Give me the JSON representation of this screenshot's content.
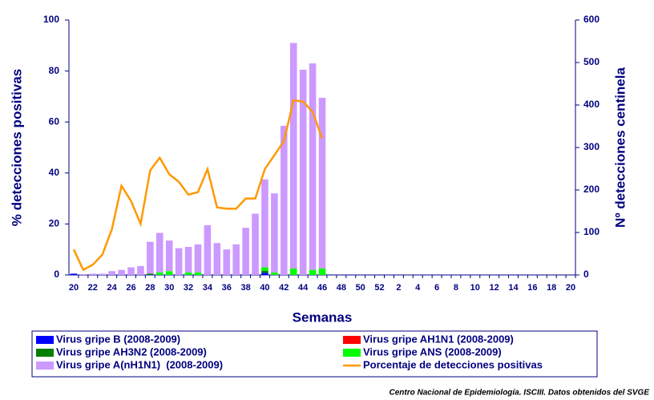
{
  "chart_data": {
    "type": "bar",
    "ylabel": "% detecciones positivas",
    "y2label": "Nº detecciones centinela",
    "xlabel": "Semanas",
    "source": "Centro Nacional de Epidemiología. ISCIII. Datos obtenidos del SVGE",
    "stacked": true,
    "ylim": [
      0,
      100
    ],
    "yticks": [
      0,
      20,
      40,
      60,
      80,
      100
    ],
    "y2lim": [
      0,
      600
    ],
    "y2ticks": [
      0,
      100,
      200,
      300,
      400,
      500,
      600
    ],
    "categories": [
      "20",
      null,
      "22",
      null,
      "24",
      null,
      "26",
      null,
      "28",
      null,
      "30",
      null,
      "32",
      null,
      "34",
      null,
      "36",
      null,
      "38",
      null,
      "40",
      null,
      "42",
      null,
      "44",
      null,
      "46",
      null,
      "48",
      null,
      "50",
      null,
      "52",
      null,
      "2",
      null,
      "4",
      null,
      "6",
      null,
      "8",
      null,
      "10",
      null,
      "12",
      null,
      "14",
      null,
      "16",
      null,
      "18",
      null,
      "20"
    ],
    "series": [
      {
        "name": "Virus gripe B (2008-2009)",
        "color": "#0000ff",
        "axis": "y2",
        "values": [
          3,
          0,
          0,
          0,
          0,
          0,
          0,
          0,
          0,
          0,
          0,
          0,
          0,
          0,
          0,
          0,
          0,
          0,
          0,
          0,
          5,
          0,
          0,
          0,
          0,
          0,
          0,
          null,
          null,
          null,
          null,
          null,
          null,
          null,
          null,
          null,
          null,
          null,
          null,
          null,
          null,
          null,
          null,
          null,
          null,
          null,
          null,
          null,
          null,
          null,
          null,
          null,
          null
        ]
      },
      {
        "name": "Virus gripe AH1N1 (2008-2009)",
        "color": "#ff0000",
        "axis": "y2",
        "values": [
          0,
          0,
          0,
          0,
          0,
          0,
          0,
          0,
          0,
          0,
          0,
          0,
          0,
          0,
          0,
          0,
          0,
          0,
          0,
          0,
          0,
          0,
          0,
          0,
          0,
          0,
          0,
          null,
          null,
          null,
          null,
          null,
          null,
          null,
          null,
          null,
          null,
          null,
          null,
          null,
          null,
          null,
          null,
          null,
          null,
          null,
          null,
          null,
          null,
          null,
          null,
          null,
          null
        ]
      },
      {
        "name": "Virus gripe AH3N2 (2008-2009)",
        "color": "#008000",
        "axis": "y2",
        "values": [
          0,
          0,
          0,
          0,
          0,
          0,
          0,
          0,
          3,
          0,
          0,
          0,
          0,
          0,
          0,
          0,
          0,
          0,
          0,
          0,
          5,
          0,
          0,
          0,
          0,
          0,
          0,
          null,
          null,
          null,
          null,
          null,
          null,
          null,
          null,
          null,
          null,
          null,
          null,
          null,
          null,
          null,
          null,
          null,
          null,
          null,
          null,
          null,
          null,
          null,
          null,
          null,
          null
        ]
      },
      {
        "name": "Virus gripe ANS (2008-2009)",
        "color": "#00ff00",
        "axis": "y2",
        "values": [
          0,
          0,
          0,
          0,
          0,
          0,
          0,
          0,
          0,
          6,
          9,
          0,
          6,
          6,
          0,
          0,
          0,
          0,
          0,
          0,
          8,
          6,
          0,
          15,
          0,
          12,
          15,
          null,
          null,
          null,
          null,
          null,
          null,
          null,
          null,
          null,
          null,
          null,
          null,
          null,
          null,
          null,
          null,
          null,
          null,
          null,
          null,
          null,
          null,
          null,
          null,
          null,
          null
        ]
      },
      {
        "name": "Virus gripe A(nH1N1)  (2008-2009)",
        "color": "#cc99ff",
        "axis": "y2",
        "values": [
          0,
          2,
          3,
          3,
          9,
          12,
          18,
          21,
          75,
          93,
          72,
          63,
          60,
          66,
          117,
          75,
          60,
          72,
          111,
          144,
          207,
          186,
          351,
          531,
          483,
          486,
          402,
          null,
          null,
          null,
          null,
          null,
          null,
          null,
          null,
          null,
          null,
          null,
          null,
          null,
          null,
          null,
          null,
          null,
          null,
          null,
          null,
          null,
          null,
          null,
          null,
          null,
          null
        ]
      },
      {
        "name": "Porcentaje de detecciones positivas",
        "color": "#ff9900",
        "axis": "y",
        "type": "line",
        "values": [
          10,
          2,
          4,
          8,
          18,
          35,
          29,
          20,
          41,
          46,
          39.5,
          36.5,
          31.5,
          32.5,
          41.5,
          26.5,
          26,
          26,
          30,
          30,
          41.5,
          47,
          52.5,
          68.5,
          68,
          64,
          53.5,
          null,
          null,
          null,
          null,
          null,
          null,
          null,
          null,
          null,
          null,
          null,
          null,
          null,
          null,
          null,
          null,
          null,
          null,
          null,
          null,
          null,
          null,
          null,
          null,
          null,
          null
        ]
      }
    ]
  }
}
